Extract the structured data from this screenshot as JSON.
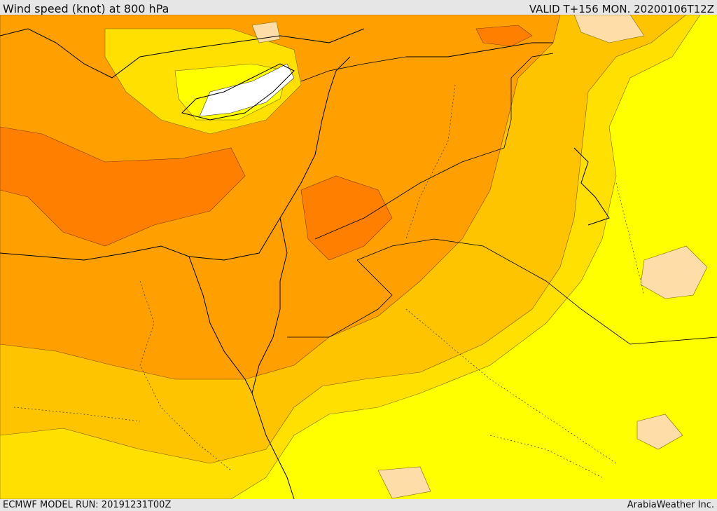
{
  "header": {
    "title": "Wind speed (knot) at 800 hPa",
    "valid": "VALID T+156 MON. 20200106T12Z"
  },
  "footer": {
    "model_run": "ECMWF MODEL RUN: 20191231T00Z",
    "brand": "ArabiaWeather Inc."
  },
  "colors": {
    "calm": "#ffff00",
    "light": "#ffe000",
    "moderate": "#ffc400",
    "fresh": "#ffa000",
    "strong": "#ff8000",
    "max_band": "#ffffff",
    "low_band": "#ffdda8",
    "coastline": "#000000"
  }
}
